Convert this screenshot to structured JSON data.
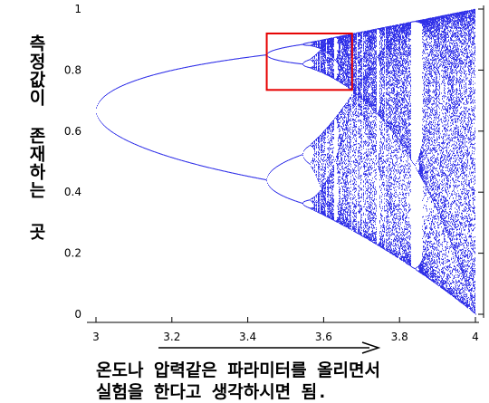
{
  "chart_data": {
    "type": "scatter",
    "xlim": [
      3.0,
      4.0
    ],
    "ylim": [
      0.0,
      1.0
    ],
    "x_ticks": [
      3,
      3.2,
      3.4,
      3.6,
      3.8,
      4
    ],
    "x_tick_labels": [
      "3",
      "3.2",
      "3.4",
      "3.6",
      "3.8",
      "4"
    ],
    "y_ticks": [
      0,
      0.2,
      0.4,
      0.6,
      0.8,
      1
    ],
    "y_tick_labels": [
      "0",
      "0.2",
      "0.4",
      "0.6",
      "0.8",
      "1"
    ],
    "grid": false,
    "series": [
      {
        "rule": "x_next = r * x * (1 - x)",
        "r_range": [
          3.0,
          4.0
        ],
        "color": "#1a1ae6"
      }
    ],
    "highlight_box": {
      "x_range": [
        3.45,
        3.675
      ],
      "y_range": [
        0.735,
        0.92
      ],
      "color": "#e60000"
    },
    "ylabel_lines": [
      "측정값이",
      "존재하는",
      "곳"
    ],
    "arrow_color": "#000000"
  },
  "caption": {
    "line1": "온도나 압력같은 파라미터를 올리면서",
    "line2": "실험을 한다고 생각하시면 됨."
  }
}
